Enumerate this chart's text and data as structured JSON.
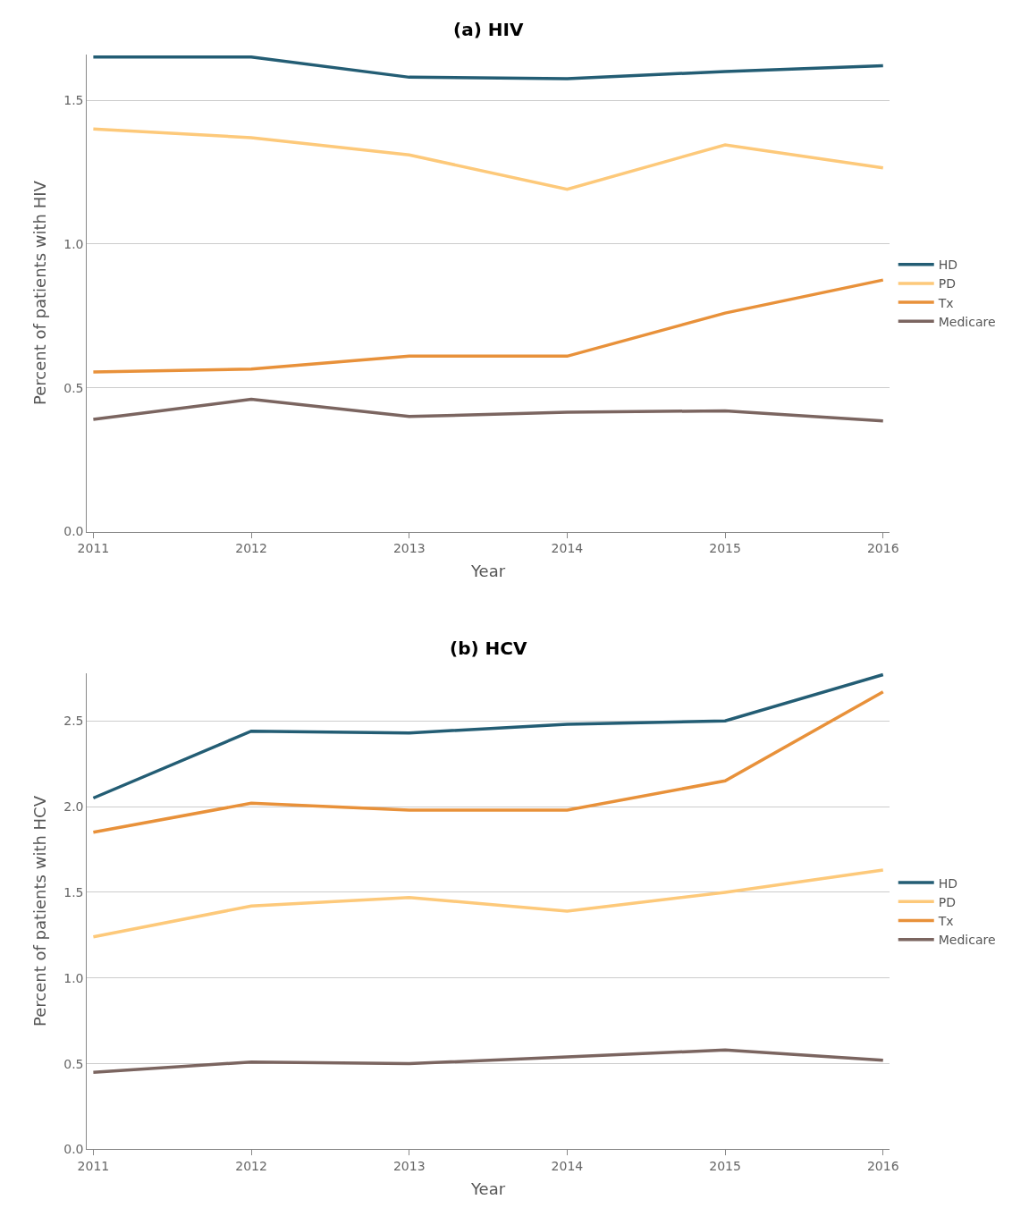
{
  "chart_data": [
    {
      "type": "line",
      "title": "(a) HIV",
      "xlabel": "Year",
      "ylabel": "Percent of patients with HIV",
      "x": [
        2011,
        2012,
        2013,
        2014,
        2015,
        2016
      ],
      "xlim": [
        2010.96,
        2016.04
      ],
      "xticks": [
        2011,
        2012,
        2013,
        2014,
        2015,
        2016
      ],
      "ylim": [
        0,
        1.66
      ],
      "yticks": [
        {
          "value": 0,
          "label": "0.0"
        },
        0.5,
        {
          "value": 1,
          "label": "1.0"
        },
        1.5
      ],
      "grid": "y",
      "legend": "right",
      "series": [
        {
          "name": "HD",
          "color": "#235d74",
          "values": [
            1.65,
            1.65,
            1.58,
            1.575,
            1.6,
            1.62
          ]
        },
        {
          "name": "PD",
          "color": "#fdc97a",
          "values": [
            1.4,
            1.37,
            1.31,
            1.19,
            1.345,
            1.265
          ]
        },
        {
          "name": "Tx",
          "color": "#e8913a",
          "values": [
            0.555,
            0.565,
            0.61,
            0.61,
            0.76,
            0.875
          ]
        },
        {
          "name": "Medicare",
          "color": "#7b6560",
          "values": [
            0.39,
            0.46,
            0.4,
            0.415,
            0.42,
            0.385
          ]
        }
      ]
    },
    {
      "type": "line",
      "title": "(b) HCV",
      "xlabel": "Year",
      "ylabel": "Percent of patients with HCV",
      "x": [
        2011,
        2012,
        2013,
        2014,
        2015,
        2016
      ],
      "xlim": [
        2010.96,
        2016.04
      ],
      "xticks": [
        2011,
        2012,
        2013,
        2014,
        2015,
        2016
      ],
      "ylim": [
        0,
        2.78
      ],
      "yticks": [
        {
          "value": 0,
          "label": "0.0"
        },
        0.5,
        {
          "value": 1,
          "label": "1.0"
        },
        1.5,
        {
          "value": 2,
          "label": "2.0"
        },
        2.5
      ],
      "grid": "y",
      "legend": "right",
      "series": [
        {
          "name": "HD",
          "color": "#235d74",
          "values": [
            2.05,
            2.44,
            2.43,
            2.48,
            2.5,
            2.77
          ]
        },
        {
          "name": "PD",
          "color": "#fdc97a",
          "values": [
            1.24,
            1.42,
            1.47,
            1.39,
            1.5,
            1.63
          ]
        },
        {
          "name": "Tx",
          "color": "#e8913a",
          "values": [
            1.85,
            2.02,
            1.98,
            1.98,
            2.15,
            2.67
          ]
        },
        {
          "name": "Medicare",
          "color": "#7b6560",
          "values": [
            0.45,
            0.51,
            0.5,
            0.54,
            0.58,
            0.52
          ]
        }
      ]
    }
  ]
}
